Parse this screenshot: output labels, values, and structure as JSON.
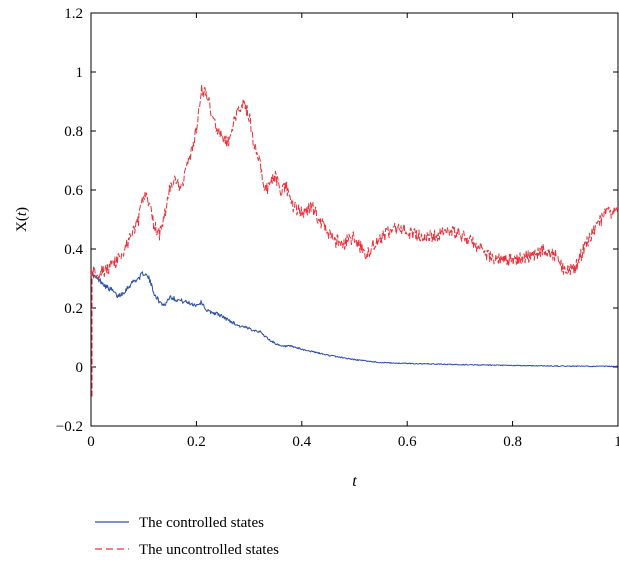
{
  "chart_data": {
    "type": "line",
    "title": "",
    "xlabel": "t",
    "ylabel": "X(t)",
    "ylabel_parts": {
      "pre": "X(",
      "var": "t",
      "post": ")"
    },
    "xlim": [
      0,
      1
    ],
    "ylim": [
      -0.2,
      1.2
    ],
    "xticks": [
      0,
      0.2,
      0.4,
      0.6,
      0.8,
      1
    ],
    "xtick_labels": [
      "0",
      "0.2",
      "0.4",
      "0.6",
      "0.8",
      "1"
    ],
    "yticks": [
      -0.2,
      0,
      0.2,
      0.4,
      0.6,
      0.8,
      1,
      1.2
    ],
    "ytick_labels": [
      "−0.2",
      "0",
      "0.2",
      "0.4",
      "0.6",
      "0.8",
      "1",
      "1.2"
    ],
    "grid": false,
    "legend_position": "bottom-left, below plot",
    "series": [
      {
        "name": "The controlled states",
        "color": "#2d4fa3",
        "dash": "solid",
        "x": [
          0,
          0.01,
          0.02,
          0.03,
          0.04,
          0.05,
          0.06,
          0.07,
          0.08,
          0.09,
          0.1,
          0.11,
          0.12,
          0.13,
          0.14,
          0.15,
          0.16,
          0.18,
          0.2,
          0.21,
          0.22,
          0.24,
          0.26,
          0.28,
          0.3,
          0.32,
          0.34,
          0.36,
          0.38,
          0.4,
          0.45,
          0.5,
          0.55,
          0.6,
          0.7,
          0.8,
          0.9,
          1.0
        ],
        "y": [
          0.32,
          0.3,
          0.29,
          0.27,
          0.26,
          0.24,
          0.25,
          0.27,
          0.29,
          0.3,
          0.32,
          0.3,
          0.25,
          0.22,
          0.21,
          0.24,
          0.23,
          0.22,
          0.21,
          0.22,
          0.19,
          0.18,
          0.16,
          0.14,
          0.13,
          0.12,
          0.09,
          0.07,
          0.07,
          0.06,
          0.04,
          0.025,
          0.015,
          0.012,
          0.008,
          0.005,
          0.003,
          0.002
        ]
      },
      {
        "name": "The uncontrolled states",
        "color": "#e8313b",
        "dash": "dashed",
        "x": [
          0,
          0.01,
          0.03,
          0.05,
          0.07,
          0.09,
          0.1,
          0.11,
          0.12,
          0.13,
          0.14,
          0.15,
          0.16,
          0.17,
          0.18,
          0.19,
          0.2,
          0.21,
          0.22,
          0.23,
          0.24,
          0.25,
          0.26,
          0.27,
          0.28,
          0.29,
          0.3,
          0.31,
          0.32,
          0.33,
          0.34,
          0.35,
          0.36,
          0.37,
          0.38,
          0.4,
          0.42,
          0.44,
          0.46,
          0.48,
          0.5,
          0.52,
          0.54,
          0.56,
          0.58,
          0.6,
          0.62,
          0.64,
          0.66,
          0.68,
          0.7,
          0.72,
          0.74,
          0.76,
          0.78,
          0.8,
          0.82,
          0.84,
          0.86,
          0.88,
          0.9,
          0.92,
          0.94,
          0.96,
          0.98,
          1.0
        ],
        "y": [
          0.33,
          0.32,
          0.33,
          0.36,
          0.42,
          0.5,
          0.58,
          0.56,
          0.48,
          0.45,
          0.52,
          0.61,
          0.63,
          0.6,
          0.67,
          0.72,
          0.8,
          0.94,
          0.92,
          0.85,
          0.8,
          0.78,
          0.76,
          0.82,
          0.88,
          0.9,
          0.85,
          0.75,
          0.7,
          0.6,
          0.62,
          0.65,
          0.58,
          0.62,
          0.55,
          0.52,
          0.54,
          0.48,
          0.43,
          0.42,
          0.44,
          0.38,
          0.42,
          0.45,
          0.47,
          0.46,
          0.45,
          0.44,
          0.45,
          0.46,
          0.45,
          0.43,
          0.4,
          0.37,
          0.36,
          0.36,
          0.37,
          0.38,
          0.4,
          0.38,
          0.32,
          0.34,
          0.42,
          0.48,
          0.53,
          0.52
        ]
      }
    ]
  }
}
